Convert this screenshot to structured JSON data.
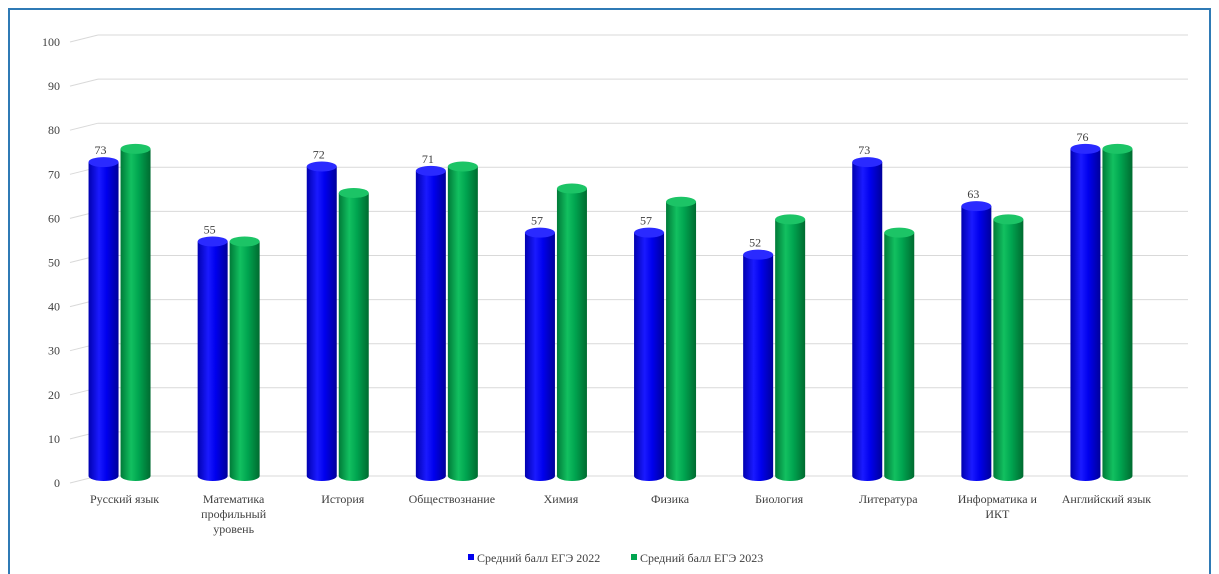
{
  "chart_data": {
    "type": "bar",
    "categories": [
      [
        "Русский язык"
      ],
      [
        "Математика",
        "профильный",
        "уровень"
      ],
      [
        "История"
      ],
      [
        "Обществознание"
      ],
      [
        "Химия"
      ],
      [
        "Физика"
      ],
      [
        "Биология"
      ],
      [
        "Литература"
      ],
      [
        "Информатика и",
        "ИКТ"
      ],
      [
        "Английский язык"
      ]
    ],
    "series": [
      {
        "name": "Средний балл ЕГЭ 2022",
        "color": "#0000ee",
        "values": [
          73,
          55,
          72,
          71,
          57,
          57,
          52,
          73,
          63,
          76
        ],
        "labels": [
          "73",
          "55",
          "72",
          "71",
          "57",
          "57",
          "52",
          "73",
          "63",
          "76"
        ]
      },
      {
        "name": "Средний балл ЕГЭ 2023",
        "color": "#00a550",
        "values": [
          76,
          55,
          66,
          72,
          67,
          64,
          60,
          57,
          60,
          76
        ]
      }
    ],
    "yticks": [
      "0",
      "10",
      "20",
      "30",
      "40",
      "50",
      "60",
      "70",
      "80",
      "90",
      "100"
    ],
    "ylim": [
      0,
      100
    ],
    "grid": true,
    "legend_position": "bottom"
  }
}
